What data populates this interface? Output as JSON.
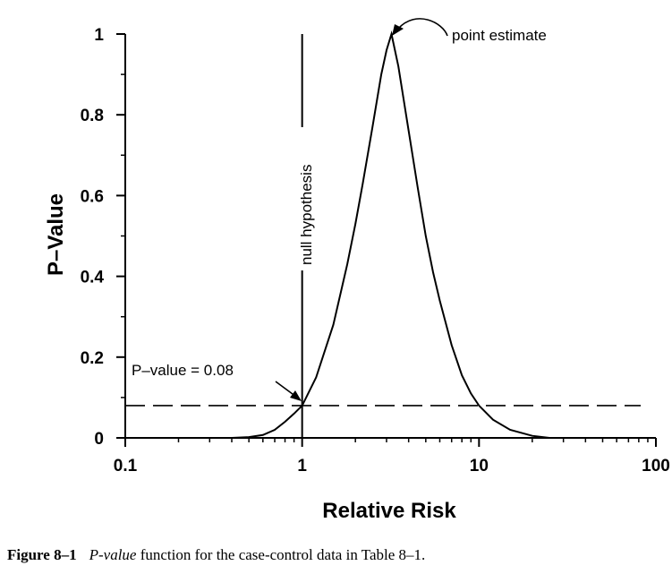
{
  "chart_data": {
    "type": "line",
    "x_scale": "log",
    "xlim": [
      0.1,
      100
    ],
    "ylim": [
      0,
      1
    ],
    "xlabel": "Relative Risk",
    "ylabel": "P–Value",
    "x_ticks": [
      {
        "value": 0.1,
        "label": "0.1"
      },
      {
        "value": 1,
        "label": "1"
      },
      {
        "value": 10,
        "label": "10"
      },
      {
        "value": 100,
        "label": "100"
      }
    ],
    "y_ticks": [
      {
        "value": 0,
        "label": "0"
      },
      {
        "value": 0.2,
        "label": "0.2"
      },
      {
        "value": 0.4,
        "label": "0.4"
      },
      {
        "value": 0.6,
        "label": "0.6"
      },
      {
        "value": 0.8,
        "label": "0.8"
      },
      {
        "value": 1,
        "label": "1"
      }
    ],
    "series": [
      {
        "x": [
          0.4,
          0.5,
          0.6,
          0.7,
          0.8,
          0.9,
          1.0,
          1.2,
          1.5,
          1.8,
          2.0,
          2.2,
          2.5,
          2.8,
          3.0,
          3.2,
          3.5,
          4.0,
          4.5,
          5.0,
          5.5,
          6.0,
          7.0,
          8.0,
          9.0,
          10.0,
          12.0,
          15.0,
          20.0,
          25.0
        ],
        "y": [
          0.0,
          0.002,
          0.007,
          0.02,
          0.04,
          0.06,
          0.08,
          0.15,
          0.28,
          0.43,
          0.53,
          0.63,
          0.77,
          0.9,
          0.96,
          1.0,
          0.92,
          0.76,
          0.62,
          0.5,
          0.41,
          0.34,
          0.23,
          0.155,
          0.11,
          0.08,
          0.045,
          0.02,
          0.005,
          0.0
        ]
      }
    ],
    "reference_lines": {
      "null_hypothesis_x": 1,
      "p_value_y": 0.08
    },
    "annotations": {
      "point_estimate": "point estimate",
      "null_hypothesis": "null hypothesis",
      "p_value": "P–value = 0.08"
    }
  },
  "caption": {
    "figure_label": "Figure 8–1",
    "italic_term": "P-value",
    "text": "function for the case-control data in Table 8–1."
  }
}
